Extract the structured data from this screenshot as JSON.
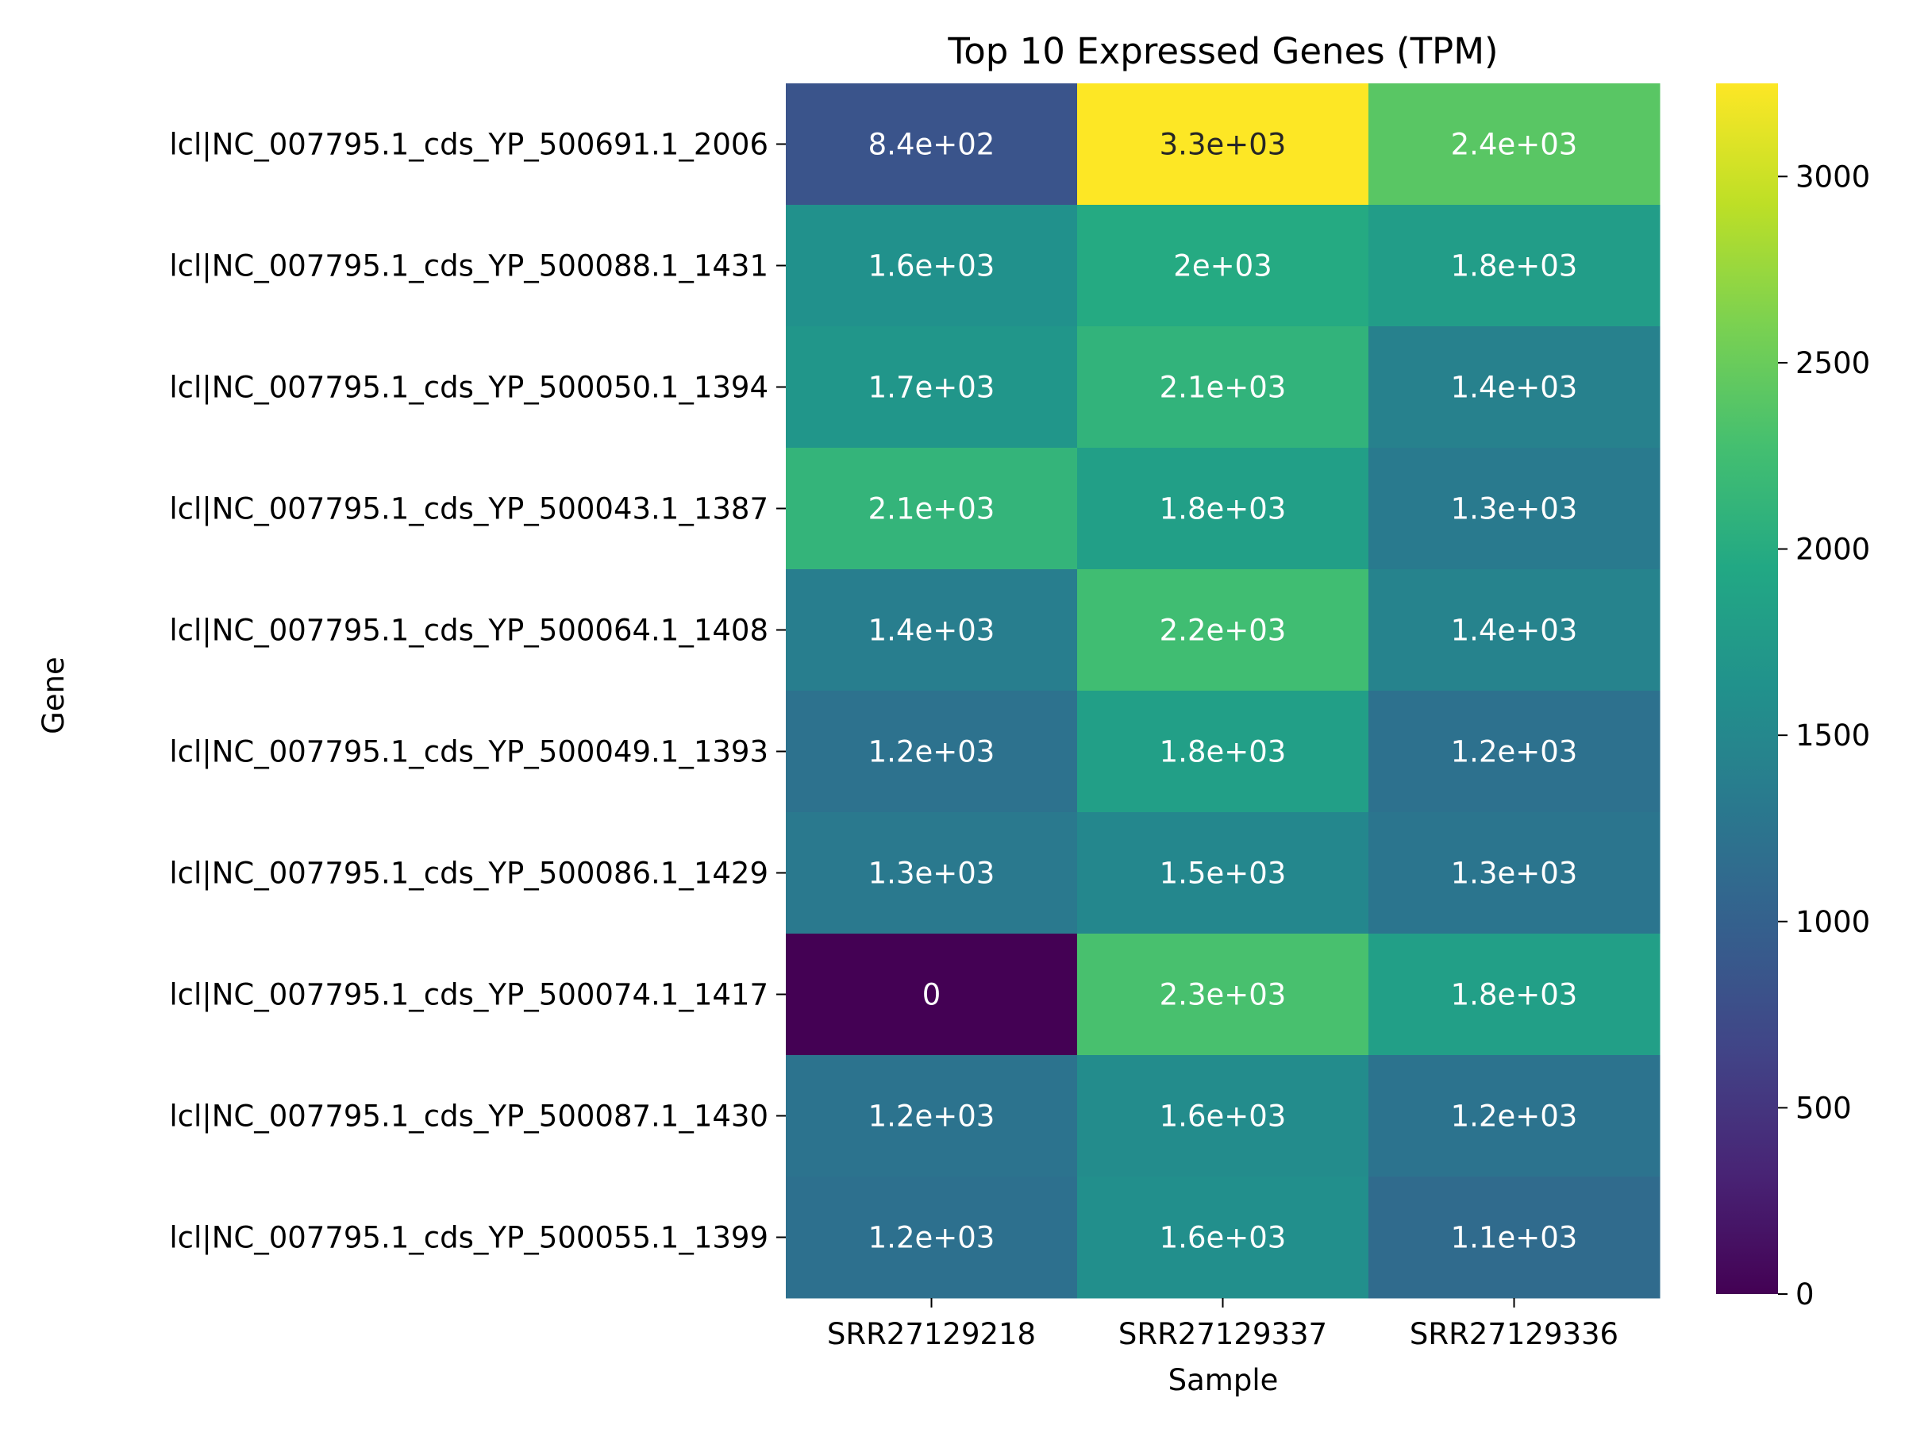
{
  "chart_data": {
    "type": "heatmap",
    "title": "Top 10 Expressed Genes (TPM)",
    "xlabel": "Sample",
    "ylabel": "Gene",
    "columns": [
      "SRR27129218",
      "SRR27129337",
      "SRR27129336"
    ],
    "rows": [
      "lcl|NC_007795.1_cds_YP_500691.1_2006",
      "lcl|NC_007795.1_cds_YP_500088.1_1431",
      "lcl|NC_007795.1_cds_YP_500050.1_1394",
      "lcl|NC_007795.1_cds_YP_500043.1_1387",
      "lcl|NC_007795.1_cds_YP_500064.1_1408",
      "lcl|NC_007795.1_cds_YP_500049.1_1393",
      "lcl|NC_007795.1_cds_YP_500086.1_1429",
      "lcl|NC_007795.1_cds_YP_500074.1_1417",
      "lcl|NC_007795.1_cds_YP_500087.1_1430",
      "lcl|NC_007795.1_cds_YP_500055.1_1399"
    ],
    "values": [
      [
        840,
        3250,
        2400
      ],
      [
        1620,
        1980,
        1800
      ],
      [
        1700,
        2100,
        1420
      ],
      [
        2120,
        1820,
        1320
      ],
      [
        1380,
        2240,
        1440
      ],
      [
        1220,
        1820,
        1210
      ],
      [
        1310,
        1500,
        1260
      ],
      [
        0,
        2300,
        1820
      ],
      [
        1230,
        1560,
        1240
      ],
      [
        1200,
        1600,
        1130
      ]
    ],
    "labels": [
      [
        "8.4e+02",
        "3.3e+03",
        "2.4e+03"
      ],
      [
        "1.6e+03",
        "2e+03",
        "1.8e+03"
      ],
      [
        "1.7e+03",
        "2.1e+03",
        "1.4e+03"
      ],
      [
        "2.1e+03",
        "1.8e+03",
        "1.3e+03"
      ],
      [
        "1.4e+03",
        "2.2e+03",
        "1.4e+03"
      ],
      [
        "1.2e+03",
        "1.8e+03",
        "1.2e+03"
      ],
      [
        "1.3e+03",
        "1.5e+03",
        "1.3e+03"
      ],
      [
        "0",
        "2.3e+03",
        "1.8e+03"
      ],
      [
        "1.2e+03",
        "1.6e+03",
        "1.2e+03"
      ],
      [
        "1.2e+03",
        "1.6e+03",
        "1.1e+03"
      ]
    ],
    "colormap": "viridis",
    "vmin": 0,
    "vmax": 3250,
    "colorbar_ticks": [
      0,
      500,
      1000,
      1500,
      2000,
      2500,
      3000
    ]
  }
}
